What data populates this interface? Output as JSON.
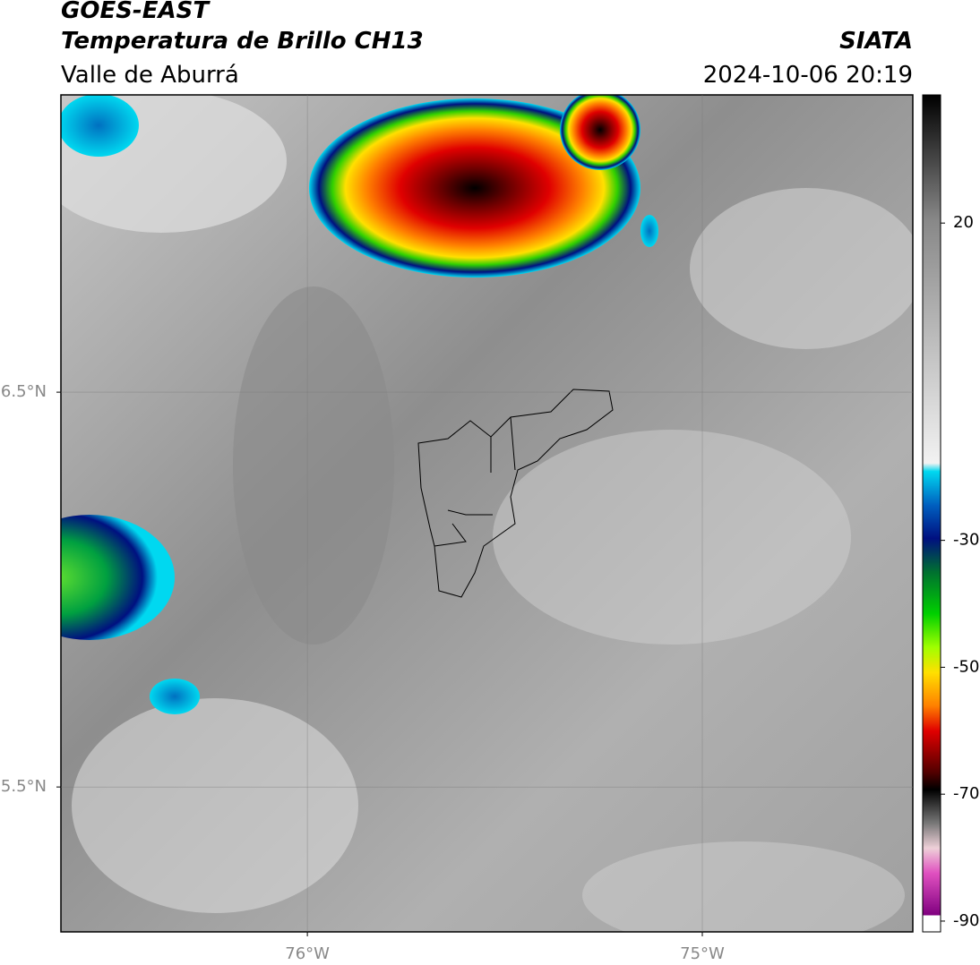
{
  "header": {
    "title": "GOES-EAST",
    "subtitle": "Temperatura de Brillo CH13",
    "source": "SIATA",
    "region": "Valle de Aburrá",
    "datetime": "2024-10-06 20:19"
  },
  "map": {
    "xlim": [
      -76.624,
      -74.467
    ],
    "ylim": [
      5.133,
      7.253
    ],
    "xticks": [
      {
        "value": -76,
        "label": "76°W"
      },
      {
        "value": -75,
        "label": "75°W"
      }
    ],
    "yticks": [
      {
        "value": 6.5,
        "label": "6.5°N"
      },
      {
        "value": 5.5,
        "label": "5.5°N"
      }
    ]
  },
  "colorbar": {
    "lim": [
      -91.7,
      40.2
    ],
    "ticks": [
      20,
      -30,
      -50,
      -70,
      -90
    ]
  }
}
